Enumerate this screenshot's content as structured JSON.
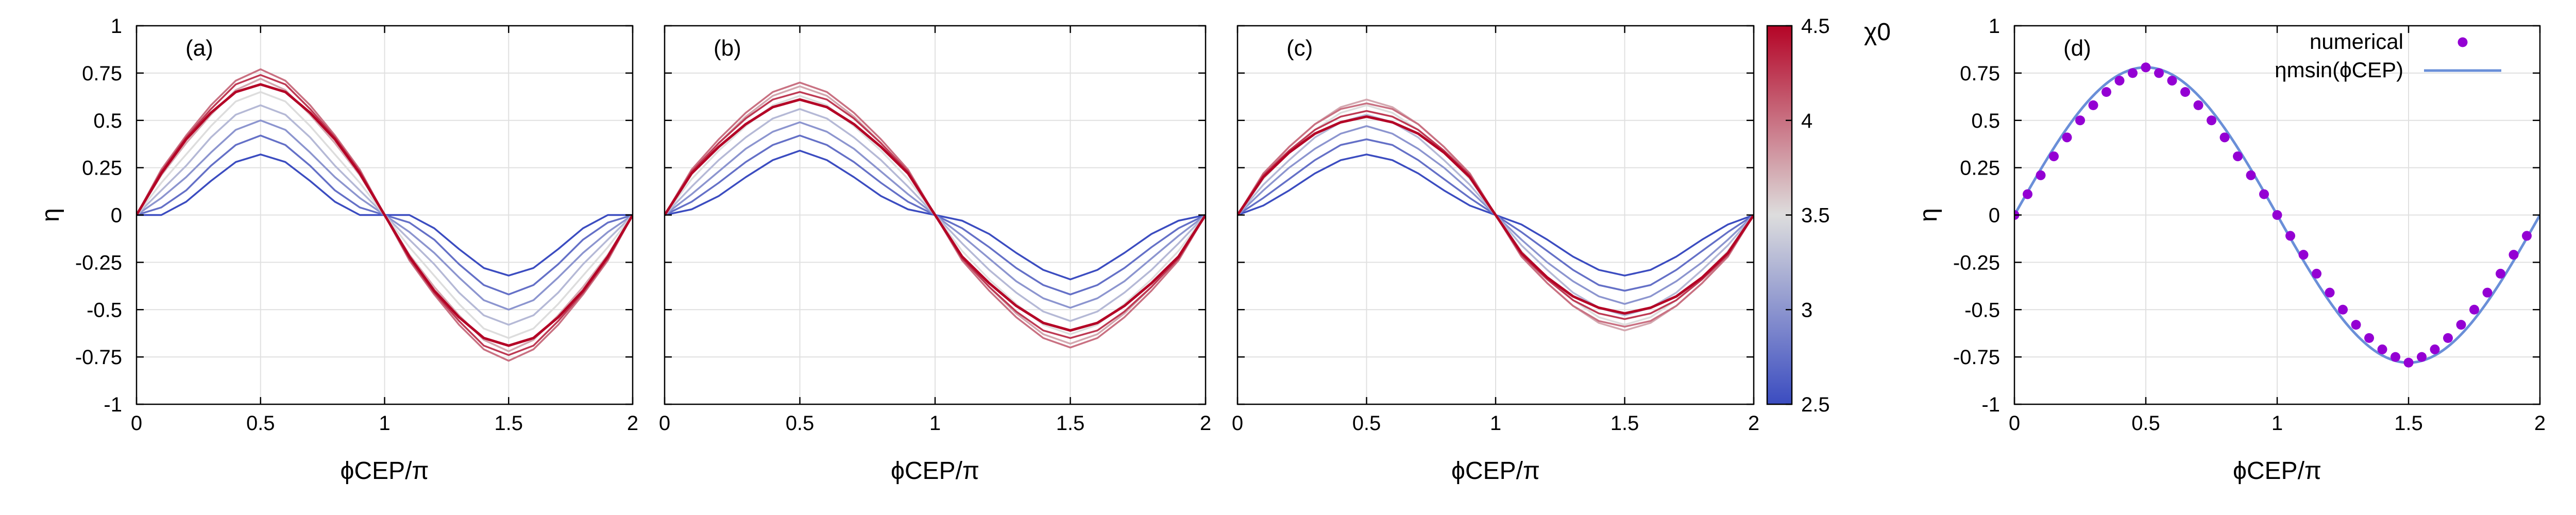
{
  "chart_data": [
    {
      "type": "line",
      "panel": "(a)",
      "xlabel": "ϕCEP/π",
      "ylabel": "η",
      "xlim": [
        0,
        2
      ],
      "ylim": [
        -1,
        1
      ],
      "xticks": [
        "0",
        "0.5",
        "1",
        "1.5",
        "2"
      ],
      "yticks": [
        "1",
        "0.75",
        "0.5",
        "0.25",
        "0",
        "-0.25",
        "-0.5",
        "-0.75",
        "-1"
      ],
      "grid": true,
      "x": [
        0,
        0.1,
        0.2,
        0.3,
        0.4,
        0.5,
        0.6,
        0.7,
        0.8,
        0.9,
        1.0,
        1.1,
        1.2,
        1.3,
        1.4,
        1.5,
        1.6,
        1.7,
        1.8,
        1.9,
        2.0
      ],
      "series": [
        {
          "name": "χ0 = 2.50",
          "values": [
            0,
            0.0,
            0.07,
            0.18,
            0.28,
            0.32,
            0.28,
            0.18,
            0.07,
            0.0,
            0,
            0.0,
            -0.07,
            -0.18,
            -0.28,
            -0.32,
            -0.28,
            -0.18,
            -0.07,
            0.0,
            0
          ]
        },
        {
          "name": "χ0 = 2.75",
          "values": [
            0,
            0.04,
            0.13,
            0.26,
            0.37,
            0.42,
            0.37,
            0.26,
            0.13,
            0.04,
            0,
            -0.04,
            -0.13,
            -0.26,
            -0.37,
            -0.42,
            -0.37,
            -0.26,
            -0.13,
            -0.04,
            0
          ]
        },
        {
          "name": "χ0 = 3.00",
          "values": [
            0,
            0.09,
            0.2,
            0.33,
            0.45,
            0.5,
            0.45,
            0.33,
            0.2,
            0.09,
            0,
            -0.09,
            -0.2,
            -0.33,
            -0.45,
            -0.5,
            -0.45,
            -0.33,
            -0.2,
            -0.09,
            0
          ]
        },
        {
          "name": "χ0 = 3.25",
          "values": [
            0,
            0.13,
            0.26,
            0.41,
            0.53,
            0.58,
            0.53,
            0.41,
            0.26,
            0.13,
            0,
            -0.13,
            -0.26,
            -0.41,
            -0.53,
            -0.58,
            -0.53,
            -0.41,
            -0.26,
            -0.13,
            0
          ]
        },
        {
          "name": "χ0 = 3.50",
          "values": [
            0,
            0.17,
            0.32,
            0.47,
            0.6,
            0.65,
            0.6,
            0.47,
            0.32,
            0.17,
            0,
            -0.17,
            -0.32,
            -0.47,
            -0.6,
            -0.65,
            -0.6,
            -0.47,
            -0.32,
            -0.17,
            0
          ]
        },
        {
          "name": "χ0 = 3.75",
          "values": [
            0,
            0.21,
            0.38,
            0.53,
            0.66,
            0.72,
            0.66,
            0.53,
            0.38,
            0.21,
            0,
            -0.21,
            -0.38,
            -0.53,
            -0.66,
            -0.72,
            -0.66,
            -0.53,
            -0.38,
            -0.21,
            0
          ]
        },
        {
          "name": "χ0 = 4.00",
          "values": [
            0,
            0.24,
            0.42,
            0.58,
            0.71,
            0.77,
            0.71,
            0.58,
            0.42,
            0.24,
            0,
            -0.24,
            -0.42,
            -0.58,
            -0.71,
            -0.77,
            -0.71,
            -0.58,
            -0.42,
            -0.24,
            0
          ]
        },
        {
          "name": "χ0 = 4.25",
          "values": [
            0,
            0.23,
            0.41,
            0.56,
            0.69,
            0.74,
            0.69,
            0.56,
            0.41,
            0.23,
            0,
            -0.23,
            -0.41,
            -0.56,
            -0.69,
            -0.74,
            -0.69,
            -0.56,
            -0.41,
            -0.23,
            0
          ]
        },
        {
          "name": "χ0 = 4.50",
          "values": [
            0,
            0.22,
            0.4,
            0.54,
            0.65,
            0.69,
            0.65,
            0.54,
            0.4,
            0.22,
            0,
            -0.22,
            -0.4,
            -0.54,
            -0.65,
            -0.69,
            -0.65,
            -0.54,
            -0.4,
            -0.22,
            0
          ]
        }
      ]
    },
    {
      "type": "line",
      "panel": "(b)",
      "xlabel": "ϕCEP/π",
      "ylabel": "",
      "xlim": [
        0,
        2
      ],
      "ylim": [
        -1,
        1
      ],
      "xticks": [
        "0",
        "0.5",
        "1",
        "1.5",
        "2"
      ],
      "grid": true,
      "x": [
        0,
        0.1,
        0.2,
        0.3,
        0.4,
        0.5,
        0.6,
        0.7,
        0.8,
        0.9,
        1.0,
        1.1,
        1.2,
        1.3,
        1.4,
        1.5,
        1.6,
        1.7,
        1.8,
        1.9,
        2.0
      ],
      "series": [
        {
          "name": "χ0 = 2.50",
          "values": [
            0,
            0.03,
            0.1,
            0.2,
            0.29,
            0.34,
            0.29,
            0.2,
            0.1,
            0.03,
            0,
            -0.03,
            -0.1,
            -0.2,
            -0.29,
            -0.34,
            -0.29,
            -0.2,
            -0.1,
            -0.03,
            0
          ]
        },
        {
          "name": "χ0 = 2.75",
          "values": [
            0,
            0.07,
            0.17,
            0.28,
            0.37,
            0.42,
            0.37,
            0.28,
            0.17,
            0.07,
            0,
            -0.07,
            -0.17,
            -0.28,
            -0.37,
            -0.42,
            -0.37,
            -0.28,
            -0.17,
            -0.07,
            0
          ]
        },
        {
          "name": "χ0 = 3.00",
          "values": [
            0,
            0.11,
            0.23,
            0.35,
            0.44,
            0.49,
            0.44,
            0.35,
            0.23,
            0.11,
            0,
            -0.11,
            -0.23,
            -0.35,
            -0.44,
            -0.49,
            -0.44,
            -0.35,
            -0.23,
            -0.11,
            0
          ]
        },
        {
          "name": "χ0 = 3.25",
          "values": [
            0,
            0.15,
            0.29,
            0.41,
            0.51,
            0.56,
            0.51,
            0.41,
            0.29,
            0.15,
            0,
            -0.15,
            -0.29,
            -0.41,
            -0.51,
            -0.56,
            -0.51,
            -0.41,
            -0.29,
            -0.15,
            0
          ]
        },
        {
          "name": "χ0 = 3.50",
          "values": [
            0,
            0.19,
            0.34,
            0.47,
            0.58,
            0.63,
            0.58,
            0.47,
            0.34,
            0.19,
            0,
            -0.19,
            -0.34,
            -0.47,
            -0.58,
            -0.63,
            -0.58,
            -0.47,
            -0.34,
            -0.19,
            0
          ]
        },
        {
          "name": "χ0 = 3.75",
          "values": [
            0,
            0.22,
            0.38,
            0.52,
            0.63,
            0.68,
            0.63,
            0.52,
            0.38,
            0.22,
            0,
            -0.22,
            -0.38,
            -0.52,
            -0.63,
            -0.68,
            -0.63,
            -0.52,
            -0.38,
            -0.22,
            0
          ]
        },
        {
          "name": "χ0 = 4.00",
          "values": [
            0,
            0.24,
            0.4,
            0.54,
            0.65,
            0.7,
            0.65,
            0.54,
            0.4,
            0.24,
            0,
            -0.24,
            -0.4,
            -0.54,
            -0.65,
            -0.7,
            -0.65,
            -0.54,
            -0.4,
            -0.24,
            0
          ]
        },
        {
          "name": "χ0 = 4.25",
          "values": [
            0,
            0.23,
            0.38,
            0.51,
            0.61,
            0.65,
            0.61,
            0.51,
            0.38,
            0.23,
            0,
            -0.23,
            -0.38,
            -0.51,
            -0.61,
            -0.65,
            -0.61,
            -0.51,
            -0.38,
            -0.23,
            0
          ]
        },
        {
          "name": "χ0 = 4.50",
          "values": [
            0,
            0.22,
            0.36,
            0.48,
            0.57,
            0.61,
            0.57,
            0.48,
            0.36,
            0.22,
            0,
            -0.22,
            -0.36,
            -0.48,
            -0.57,
            -0.61,
            -0.57,
            -0.48,
            -0.36,
            -0.22,
            0
          ]
        }
      ]
    },
    {
      "type": "line",
      "panel": "(c)",
      "xlabel": "ϕCEP/π",
      "ylabel": "",
      "xlim": [
        0,
        2
      ],
      "ylim": [
        -1,
        1
      ],
      "xticks": [
        "0",
        "0.5",
        "1",
        "1.5",
        "2"
      ],
      "grid": true,
      "x": [
        0,
        0.1,
        0.2,
        0.3,
        0.4,
        0.5,
        0.6,
        0.7,
        0.8,
        0.9,
        1.0,
        1.1,
        1.2,
        1.3,
        1.4,
        1.5,
        1.6,
        1.7,
        1.8,
        1.9,
        2.0
      ],
      "series": [
        {
          "name": "χ0 = 2.50",
          "values": [
            0,
            0.05,
            0.13,
            0.22,
            0.29,
            0.32,
            0.29,
            0.22,
            0.13,
            0.05,
            0,
            -0.05,
            -0.13,
            -0.22,
            -0.29,
            -0.32,
            -0.29,
            -0.22,
            -0.13,
            -0.05,
            0
          ]
        },
        {
          "name": "χ0 = 2.75",
          "values": [
            0,
            0.09,
            0.19,
            0.29,
            0.37,
            0.4,
            0.37,
            0.29,
            0.19,
            0.09,
            0,
            -0.09,
            -0.19,
            -0.29,
            -0.37,
            -0.4,
            -0.37,
            -0.29,
            -0.19,
            -0.09,
            0
          ]
        },
        {
          "name": "χ0 = 3.00",
          "values": [
            0,
            0.13,
            0.25,
            0.35,
            0.43,
            0.47,
            0.43,
            0.35,
            0.25,
            0.13,
            0,
            -0.13,
            -0.25,
            -0.35,
            -0.43,
            -0.47,
            -0.43,
            -0.35,
            -0.25,
            -0.13,
            0
          ]
        },
        {
          "name": "χ0 = 3.25",
          "values": [
            0,
            0.16,
            0.29,
            0.41,
            0.49,
            0.53,
            0.49,
            0.41,
            0.29,
            0.16,
            0,
            -0.16,
            -0.29,
            -0.41,
            -0.49,
            -0.53,
            -0.49,
            -0.41,
            -0.29,
            -0.16,
            0
          ]
        },
        {
          "name": "χ0 = 3.50",
          "values": [
            0,
            0.19,
            0.33,
            0.45,
            0.54,
            0.58,
            0.54,
            0.45,
            0.33,
            0.19,
            0,
            -0.19,
            -0.33,
            -0.45,
            -0.54,
            -0.58,
            -0.54,
            -0.45,
            -0.33,
            -0.19,
            0
          ]
        },
        {
          "name": "χ0 = 3.75",
          "values": [
            0,
            0.21,
            0.36,
            0.48,
            0.57,
            0.61,
            0.57,
            0.48,
            0.36,
            0.21,
            0,
            -0.21,
            -0.36,
            -0.48,
            -0.57,
            -0.61,
            -0.57,
            -0.48,
            -0.36,
            -0.21,
            0
          ]
        },
        {
          "name": "χ0 = 4.00",
          "values": [
            0,
            0.22,
            0.36,
            0.48,
            0.56,
            0.59,
            0.56,
            0.48,
            0.36,
            0.22,
            0,
            -0.22,
            -0.36,
            -0.48,
            -0.56,
            -0.59,
            -0.56,
            -0.48,
            -0.36,
            -0.22,
            0
          ]
        },
        {
          "name": "χ0 = 4.25",
          "values": [
            0,
            0.21,
            0.34,
            0.45,
            0.52,
            0.55,
            0.52,
            0.45,
            0.34,
            0.21,
            0,
            -0.21,
            -0.34,
            -0.45,
            -0.52,
            -0.55,
            -0.52,
            -0.45,
            -0.34,
            -0.21,
            0
          ]
        },
        {
          "name": "χ0 = 4.50",
          "values": [
            0,
            0.2,
            0.33,
            0.43,
            0.49,
            0.52,
            0.49,
            0.43,
            0.33,
            0.2,
            0,
            -0.2,
            -0.33,
            -0.43,
            -0.49,
            -0.52,
            -0.49,
            -0.43,
            -0.33,
            -0.2,
            0
          ]
        }
      ]
    },
    {
      "type": "scatter",
      "panel": "(d)",
      "xlabel": "ϕCEP/π",
      "ylabel": "η",
      "xlim": [
        0,
        2
      ],
      "ylim": [
        -1,
        1
      ],
      "xticks": [
        "0",
        "0.5",
        "1",
        "1.5",
        "2"
      ],
      "yticks": [
        "1",
        "0.75",
        "0.5",
        "0.25",
        "0",
        "-0.25",
        "-0.5",
        "-0.75",
        "-1"
      ],
      "grid": true,
      "series": [
        {
          "name": "numerical",
          "style": "points",
          "color": "#9400d3",
          "x": [
            0,
            0.05,
            0.1,
            0.15,
            0.2,
            0.25,
            0.3,
            0.35,
            0.4,
            0.45,
            0.5,
            0.55,
            0.6,
            0.65,
            0.7,
            0.75,
            0.8,
            0.85,
            0.9,
            0.95,
            1.0,
            1.05,
            1.1,
            1.15,
            1.2,
            1.25,
            1.3,
            1.35,
            1.4,
            1.45,
            1.5,
            1.55,
            1.6,
            1.65,
            1.7,
            1.75,
            1.8,
            1.85,
            1.9,
            1.95
          ],
          "values": [
            0,
            0.11,
            0.21,
            0.31,
            0.41,
            0.5,
            0.58,
            0.65,
            0.71,
            0.75,
            0.78,
            0.75,
            0.71,
            0.65,
            0.58,
            0.5,
            0.41,
            0.31,
            0.21,
            0.11,
            0,
            -0.11,
            -0.21,
            -0.31,
            -0.41,
            -0.5,
            -0.58,
            -0.65,
            -0.71,
            -0.75,
            -0.78,
            -0.75,
            -0.71,
            -0.65,
            -0.58,
            -0.5,
            -0.41,
            -0.31,
            -0.21,
            -0.11
          ]
        },
        {
          "name": "ηmsin(ϕCEP)",
          "style": "line",
          "color": "#6a8fd8",
          "function": "0.78*sin(pi*x)",
          "amplitude": 0.78
        }
      ],
      "legend": "top-right"
    }
  ],
  "colorbar": {
    "label": "χ0",
    "min": 2.5,
    "max": 4.5,
    "ticks": [
      "4.5",
      "4",
      "3.5",
      "3",
      "2.5"
    ],
    "color_low": "#3b4cc0",
    "color_mid": "#dddddd",
    "color_high": "#b40426"
  },
  "colors": {
    "grid": "#e0e0e0",
    "axis": "#000000",
    "fit_line": "#6a8fd8",
    "points": "#9400d3"
  }
}
